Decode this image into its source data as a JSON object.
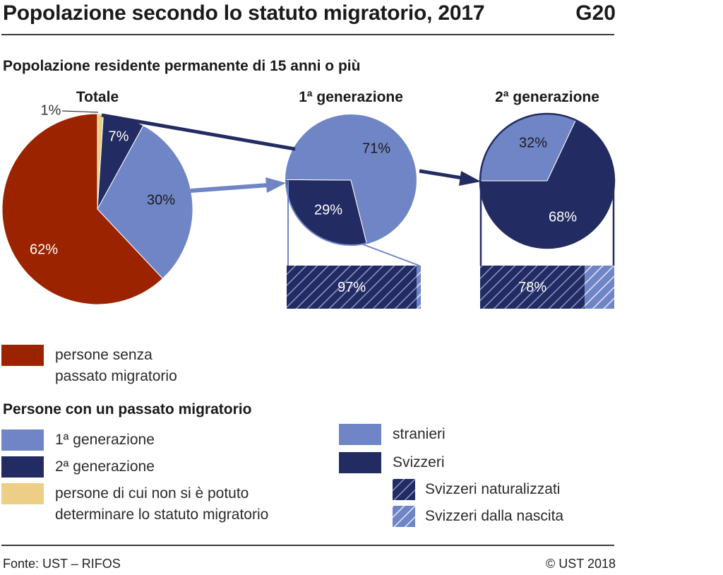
{
  "header": {
    "title": "Popolazione secondo lo statuto migratorio, 2017",
    "code": "G20",
    "subtitle": "Popolazione residente permanente di 15 anni o più"
  },
  "colors": {
    "no_migration": "#9c2300",
    "first_gen": "#6f85c6",
    "second_gen": "#232c62",
    "undetermined": "#ecce86",
    "stranieri": "#6f85c6",
    "svizzeri": "#232c62",
    "naturalizzati": "#232c62",
    "dalla_nascita": "#6f85c6"
  },
  "chart_data": [
    {
      "type": "pie",
      "title": "Totale",
      "labels": [
        "persone senza passato migratorio",
        "1ª generazione",
        "2ª generazione",
        "persone di cui non si è potuto determinare lo statuto migratorio"
      ],
      "values": [
        62,
        30,
        7,
        1
      ],
      "data_labels": [
        "62%",
        "30%",
        "7%",
        "1%"
      ],
      "units": "%"
    },
    {
      "type": "pie",
      "title": "1ª generazione",
      "labels": [
        "stranieri",
        "Svizzeri"
      ],
      "values": [
        71,
        29
      ],
      "data_labels": [
        "71%",
        "29%"
      ],
      "sub_bar": {
        "labels": [
          "Svizzeri naturalizzati",
          "Svizzeri dalla nascita"
        ],
        "values": [
          97,
          3
        ],
        "data_label": "97%"
      }
    },
    {
      "type": "pie",
      "title": "2ª generazione",
      "labels": [
        "stranieri",
        "Svizzeri"
      ],
      "values": [
        32,
        68
      ],
      "data_labels": [
        "32%",
        "68%"
      ],
      "sub_bar": {
        "labels": [
          "Svizzeri naturalizzati",
          "Svizzeri dalla nascita"
        ],
        "values": [
          78,
          22
        ],
        "data_label": "78%"
      }
    }
  ],
  "legend": {
    "no_migration": {
      "line1": "persone senza",
      "line2": "passato migratorio"
    },
    "heading": "Persone con un passato migratorio",
    "first_gen": "1ª generazione",
    "second_gen": "2ª generazione",
    "undetermined": {
      "line1": "persone di cui non si è potuto",
      "line2": "determinare lo statuto migratorio"
    },
    "stranieri": "stranieri",
    "svizzeri": "Svizzeri",
    "naturalizzati": "Svizzeri naturalizzati",
    "dalla_nascita": "Svizzeri dalla nascita"
  },
  "footer": {
    "source": "Fonte: UST – RIFOS",
    "copyright": "© UST 2018"
  }
}
